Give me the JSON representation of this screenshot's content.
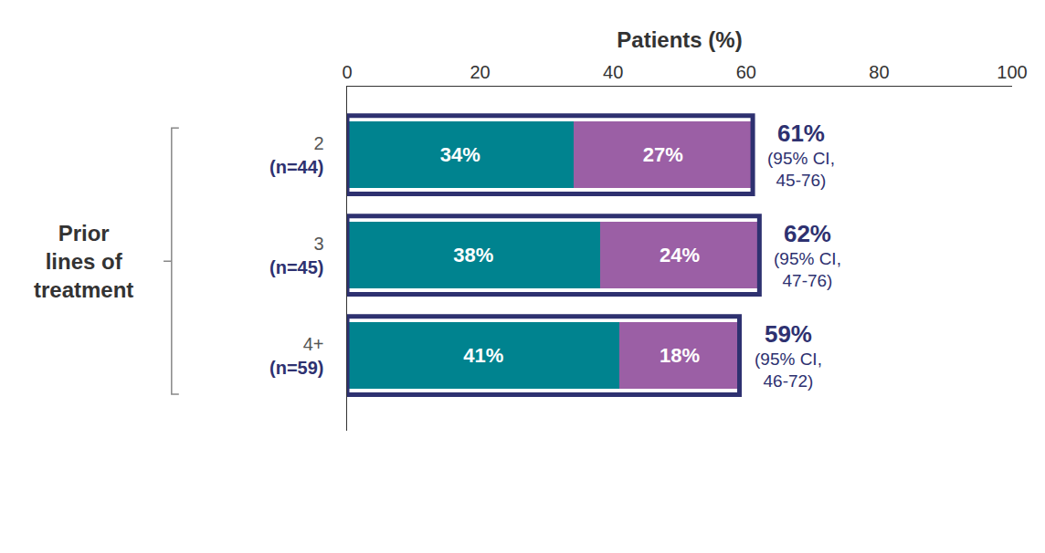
{
  "chart_data": {
    "type": "bar",
    "orientation": "horizontal",
    "stacked": true,
    "data_labels": true,
    "x_label": "Patients (%)",
    "y_label": "Prior lines of treatment",
    "categories": [
      "2 (n=44)",
      "3 (n=45)",
      "4+ (n=59)"
    ],
    "series": [
      {
        "color": "#00838f",
        "values": [
          34,
          38,
          41
        ],
        "value_labels": [
          "34%",
          "38%",
          "41%"
        ]
      },
      {
        "color": "#9b5fa5",
        "values": [
          27,
          24,
          18
        ],
        "value_labels": [
          "27%",
          "24%",
          "18%"
        ]
      }
    ],
    "totals": {
      "color": "#2e3170",
      "values": [
        61,
        62,
        59
      ],
      "value_labels": [
        "61%",
        "62%",
        "59%"
      ],
      "notes": [
        "(95% CI, 45-76)",
        "(95% CI, 47-76)",
        "(95% CI, 46-72)"
      ]
    },
    "xlim": [
      0,
      100
    ],
    "xticks": [
      0,
      20,
      40,
      60,
      80,
      100
    ],
    "grid": false
  }
}
